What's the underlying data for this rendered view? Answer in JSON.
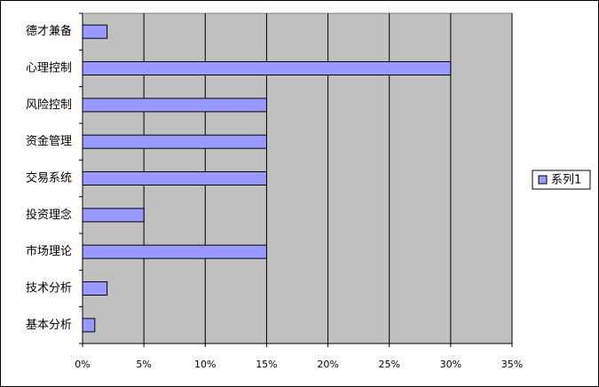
{
  "chart_data": {
    "type": "bar",
    "orientation": "horizontal",
    "categories": [
      "德才兼备",
      "心理控制",
      "风险控制",
      "资金管理",
      "交易系统",
      "投资理念",
      "市场理论",
      "技术分析",
      "基本分析"
    ],
    "series": [
      {
        "name": "系列1",
        "color": "#9999ff",
        "values": [
          2,
          30,
          15,
          15,
          15,
          5,
          15,
          2,
          1
        ]
      }
    ],
    "xlim": [
      0,
      35
    ],
    "xticks": [
      {
        "value": 0,
        "label": "0%"
      },
      {
        "value": 5,
        "label": "5%"
      },
      {
        "value": 10,
        "label": "10%"
      },
      {
        "value": 15,
        "label": "15%"
      },
      {
        "value": 20,
        "label": "20%"
      },
      {
        "value": 25,
        "label": "25%"
      },
      {
        "value": 30,
        "label": "30%"
      },
      {
        "value": 35,
        "label": "35%"
      }
    ],
    "grid": true,
    "legend": "right"
  }
}
